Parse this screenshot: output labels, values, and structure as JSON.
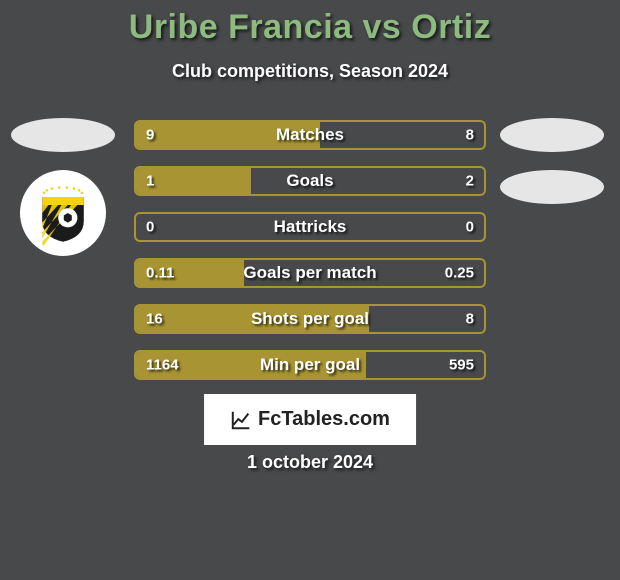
{
  "background_color": "#48494b",
  "accent_color": "#8cba7f",
  "title": "Uribe Francia vs Ortiz",
  "title_color": "#8cba7f",
  "subtitle": "Club competitions, Season 2024",
  "brand": "FcTables.com",
  "date": "1 october 2024",
  "left_team": {
    "bar_color": "#a89433",
    "badge": {
      "outer": "#ffffff",
      "shield_top": "#f4d114",
      "shield_bottom": "#1b1b1b",
      "stripe": "#f4d114"
    }
  },
  "right_team": {
    "bar_color": "#48494b"
  },
  "bars": {
    "border_color": "#a89433",
    "rows": [
      {
        "label": "Matches",
        "left": "9",
        "right": "8",
        "left_pct": 53,
        "right_pct": 47
      },
      {
        "label": "Goals",
        "left": "1",
        "right": "2",
        "left_pct": 33,
        "right_pct": 67
      },
      {
        "label": "Hattricks",
        "left": "0",
        "right": "0",
        "left_pct": 0,
        "right_pct": 0
      },
      {
        "label": "Goals per match",
        "left": "0.11",
        "right": "0.25",
        "left_pct": 31,
        "right_pct": 69
      },
      {
        "label": "Shots per goal",
        "left": "16",
        "right": "8",
        "left_pct": 67,
        "right_pct": 33
      },
      {
        "label": "Min per goal",
        "left": "1164",
        "right": "595",
        "left_pct": 66,
        "right_pct": 34
      }
    ]
  }
}
